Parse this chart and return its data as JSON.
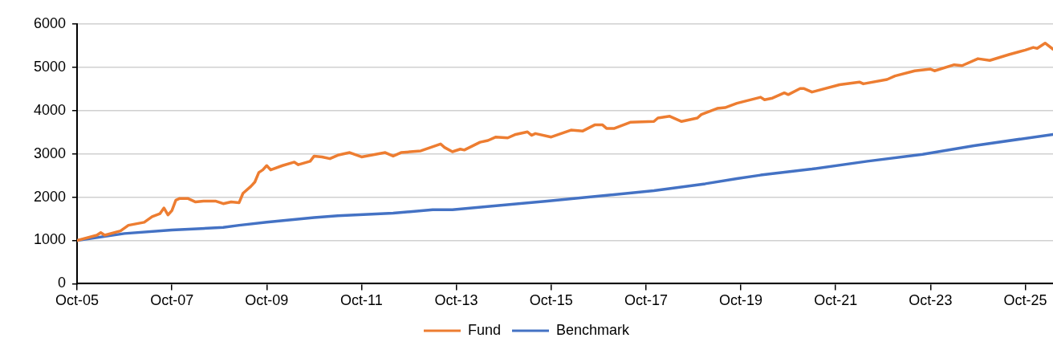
{
  "chart_data": {
    "type": "line",
    "xlim": [
      "2005-10",
      "2026-05"
    ],
    "ylim": [
      0,
      6000
    ],
    "xticks": [
      {
        "value": "2005-10",
        "label": "Oct-05"
      },
      {
        "value": "2007-10",
        "label": "Oct-07"
      },
      {
        "value": "2009-10",
        "label": "Oct-09"
      },
      {
        "value": "2011-10",
        "label": "Oct-11"
      },
      {
        "value": "2013-10",
        "label": "Oct-13"
      },
      {
        "value": "2015-10",
        "label": "Oct-15"
      },
      {
        "value": "2017-10",
        "label": "Oct-17"
      },
      {
        "value": "2019-10",
        "label": "Oct-19"
      },
      {
        "value": "2021-10",
        "label": "Oct-21"
      },
      {
        "value": "2023-10",
        "label": "Oct-23"
      },
      {
        "value": "2025-10",
        "label": "Oct-25"
      }
    ],
    "yticks": [
      0,
      1000,
      2000,
      3000,
      4000,
      5000,
      6000
    ],
    "grid": "y",
    "legend": "bottom",
    "marker": "none",
    "line_style": "solid",
    "series": [
      {
        "name": "Fund",
        "color": "#ed7d31",
        "x": [
          "2005-10",
          "2006-03",
          "2006-04",
          "2006-05",
          "2006-09",
          "2006-11",
          "2007-03",
          "2007-05",
          "2007-07",
          "2007-08",
          "2007-09",
          "2007-10",
          "2007-11",
          "2007-12",
          "2008-02",
          "2008-04",
          "2008-06",
          "2008-09",
          "2008-11",
          "2009-01",
          "2009-03",
          "2009-04",
          "2009-06",
          "2009-07",
          "2009-08",
          "2009-09",
          "2009-10",
          "2009-11",
          "2010-02",
          "2010-05",
          "2010-06",
          "2010-09",
          "2010-10",
          "2010-12",
          "2011-02",
          "2011-04",
          "2011-07",
          "2011-10",
          "2012-04",
          "2012-06",
          "2012-08",
          "2013-01",
          "2013-06",
          "2013-07",
          "2013-09",
          "2013-11",
          "2013-12",
          "2014-04",
          "2014-06",
          "2014-08",
          "2014-11",
          "2015-01",
          "2015-04",
          "2015-05",
          "2015-06",
          "2015-10",
          "2016-03",
          "2016-06",
          "2016-09",
          "2016-11",
          "2016-12",
          "2017-02",
          "2017-06",
          "2017-12",
          "2018-01",
          "2018-04",
          "2018-07",
          "2018-11",
          "2018-12",
          "2019-04",
          "2019-06",
          "2019-09",
          "2020-03",
          "2020-04",
          "2020-06",
          "2020-09",
          "2020-10",
          "2021-01",
          "2021-02",
          "2021-04",
          "2021-11",
          "2022-04",
          "2022-05",
          "2022-11",
          "2023-01",
          "2023-06",
          "2023-10",
          "2023-11",
          "2024-04",
          "2024-06",
          "2024-10",
          "2025-01",
          "2025-06",
          "2025-10",
          "2025-12",
          "2026-01",
          "2026-03",
          "2026-05"
        ],
        "values": [
          1000,
          1120,
          1180,
          1120,
          1220,
          1350,
          1420,
          1550,
          1620,
          1750,
          1590,
          1690,
          1930,
          1970,
          1970,
          1890,
          1910,
          1910,
          1850,
          1890,
          1870,
          2090,
          2250,
          2350,
          2570,
          2630,
          2730,
          2630,
          2730,
          2810,
          2750,
          2830,
          2950,
          2930,
          2890,
          2970,
          3030,
          2930,
          3030,
          2950,
          3030,
          3070,
          3230,
          3150,
          3050,
          3110,
          3090,
          3270,
          3310,
          3390,
          3370,
          3450,
          3510,
          3430,
          3470,
          3390,
          3550,
          3530,
          3670,
          3670,
          3590,
          3590,
          3730,
          3750,
          3830,
          3870,
          3750,
          3830,
          3910,
          4050,
          4070,
          4170,
          4310,
          4250,
          4290,
          4410,
          4370,
          4510,
          4510,
          4430,
          4600,
          4660,
          4620,
          4720,
          4800,
          4920,
          4960,
          4920,
          5060,
          5040,
          5200,
          5160,
          5300,
          5400,
          5460,
          5440,
          5560,
          5420
        ]
      },
      {
        "name": "Benchmark",
        "color": "#4472c4",
        "x": [
          "2005-10",
          "2006-10",
          "2007-10",
          "2008-11",
          "2009-03",
          "2009-10",
          "2010-10",
          "2011-04",
          "2012-06",
          "2013-04",
          "2013-09",
          "2015-09",
          "2017-12",
          "2019-01",
          "2019-09",
          "2020-03",
          "2021-04",
          "2022-06",
          "2023-08",
          "2024-09",
          "2026-05"
        ],
        "values": [
          1000,
          1160,
          1240,
          1300,
          1350,
          1420,
          1530,
          1570,
          1630,
          1710,
          1710,
          1910,
          2150,
          2310,
          2430,
          2510,
          2650,
          2830,
          2990,
          3190,
          3450
        ]
      }
    ]
  }
}
